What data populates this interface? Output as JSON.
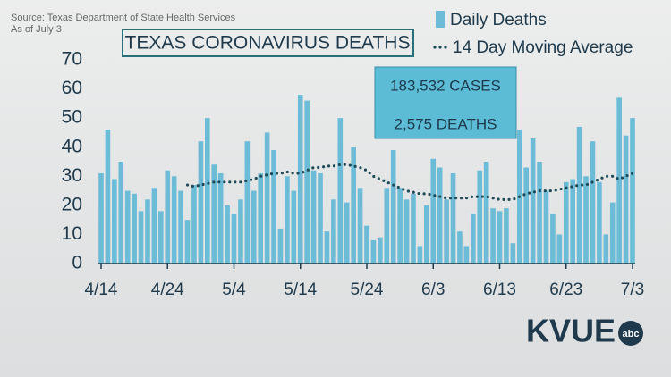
{
  "chart_data": {
    "type": "bar",
    "title": "TEXAS CORONAVIRUS DEATHS",
    "source": [
      "Source: Texas Department of State Health Services",
      "As of July 3"
    ],
    "annotations": [
      "183,532 CASES",
      "2,575 DEATHS"
    ],
    "logo": "KVUE",
    "logo_badge": "abc",
    "categories": [
      "4/14",
      null,
      null,
      null,
      null,
      null,
      null,
      null,
      null,
      null,
      "4/24",
      null,
      null,
      null,
      null,
      null,
      null,
      null,
      null,
      null,
      "5/4",
      null,
      null,
      null,
      null,
      null,
      null,
      null,
      null,
      null,
      "5/14",
      null,
      null,
      null,
      null,
      null,
      null,
      null,
      null,
      null,
      "5/24",
      null,
      null,
      null,
      null,
      null,
      null,
      null,
      null,
      null,
      "6/3",
      null,
      null,
      null,
      null,
      null,
      null,
      null,
      null,
      null,
      "6/13",
      null,
      null,
      null,
      null,
      null,
      null,
      null,
      null,
      null,
      "6/23",
      null,
      null,
      null,
      null,
      null,
      null,
      null,
      null,
      null,
      "7/3"
    ],
    "series": [
      {
        "name": "Daily Deaths",
        "type": "bar",
        "color": "#6cbcd7",
        "values": [
          31,
          46,
          29,
          35,
          25,
          24,
          18,
          22,
          26,
          18,
          32,
          30,
          25,
          15,
          27,
          42,
          50,
          34,
          31,
          20,
          17,
          22,
          42,
          25,
          31,
          45,
          39,
          12,
          30,
          25,
          58,
          56,
          32,
          31,
          11,
          22,
          50,
          21,
          40,
          26,
          13,
          8,
          9,
          26,
          39,
          26,
          22,
          24,
          6,
          20,
          36,
          33,
          22,
          31,
          11,
          6,
          17,
          32,
          35,
          19,
          18,
          19,
          7,
          46,
          33,
          43,
          35,
          25,
          17,
          10,
          28,
          29,
          47,
          30,
          42,
          28,
          10,
          21,
          57,
          44,
          50
        ]
      },
      {
        "name": "14 Day Moving Average",
        "type": "line",
        "color": "#1e4b57",
        "values": [
          null,
          null,
          null,
          null,
          null,
          null,
          null,
          null,
          null,
          null,
          null,
          null,
          null,
          27,
          26.5,
          27,
          27.5,
          28,
          28,
          28,
          28,
          28,
          28.5,
          29,
          30,
          30.5,
          31,
          31,
          31.5,
          31,
          31,
          32,
          33,
          33,
          33.5,
          33.5,
          34,
          34,
          33.5,
          33,
          32,
          30,
          29,
          28,
          27,
          26,
          25,
          24.5,
          24,
          24,
          23.5,
          23,
          22.5,
          22.5,
          22.5,
          22.5,
          23,
          23,
          23,
          22.5,
          22,
          22,
          22,
          23,
          24,
          24.5,
          25,
          25,
          25,
          25.5,
          26,
          26.5,
          27,
          27,
          28,
          29,
          30,
          30,
          29,
          30,
          31
        ]
      }
    ],
    "ylim": [
      0,
      70
    ],
    "yticks": [
      0,
      10,
      20,
      30,
      40,
      50,
      60,
      70
    ]
  }
}
